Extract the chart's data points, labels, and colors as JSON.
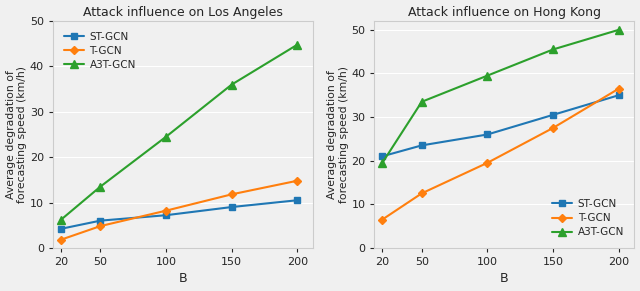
{
  "x": [
    20,
    50,
    100,
    150,
    200
  ],
  "la_stgcn": [
    4.2,
    6.0,
    7.2,
    9.0,
    10.5
  ],
  "la_tgcn": [
    1.8,
    4.8,
    8.2,
    11.8,
    14.8
  ],
  "la_a3tgcn": [
    6.2,
    13.5,
    24.5,
    36.0,
    44.8
  ],
  "hk_stgcn": [
    21.0,
    23.5,
    26.0,
    30.5,
    35.0
  ],
  "hk_tgcn": [
    6.5,
    12.5,
    19.5,
    27.5,
    36.5
  ],
  "hk_a3tgcn": [
    19.5,
    33.5,
    39.5,
    45.5,
    50.0
  ],
  "title_la": "Attack influence on Los Angeles",
  "title_hk": "Attack influence on Hong Kong",
  "ylabel": "Average degradation of\nforecasting speed (km/h)",
  "xlabel": "B",
  "ylim_la": [
    0,
    50
  ],
  "ylim_hk": [
    0,
    52
  ],
  "yticks_la": [
    0,
    10,
    20,
    30,
    40,
    50
  ],
  "yticks_hk": [
    0,
    10,
    20,
    30,
    40,
    50
  ],
  "color_stgcn": "#1f77b4",
  "color_tgcn": "#ff7f0e",
  "color_a3tgcn": "#2ca02c",
  "label_stgcn": "ST-GCN",
  "label_tgcn": "T-GCN",
  "label_a3tgcn": "A3T-GCN",
  "bg_color": "#f0f0f0",
  "fig_facecolor": "#f0f0f0"
}
